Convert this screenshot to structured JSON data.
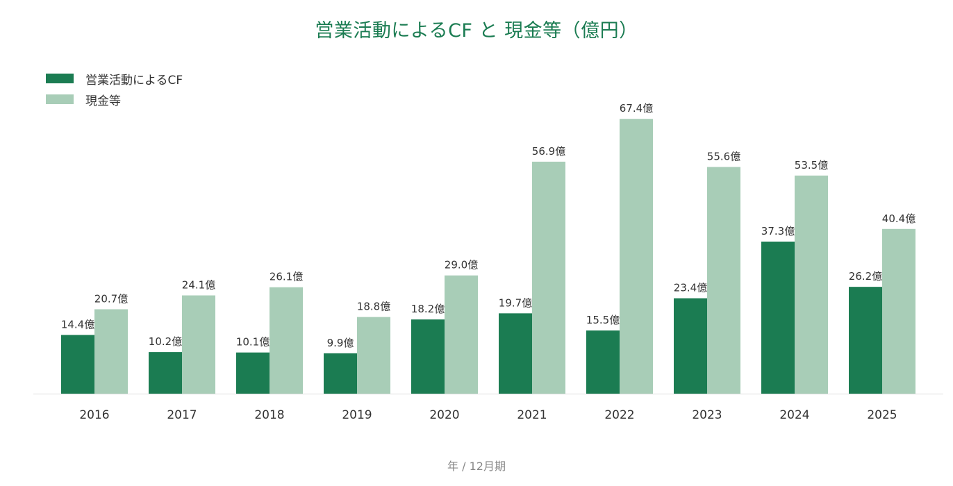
{
  "chart_data": {
    "type": "bar",
    "title": "営業活動によるCF と 現金等（億円）",
    "xlabel": "年 / 12月期",
    "ylabel": "",
    "ylim": [
      0,
      70
    ],
    "grid": false,
    "legend_position": "top-left",
    "categories": [
      "2016",
      "2017",
      "2018",
      "2019",
      "2020",
      "2021",
      "2022",
      "2023",
      "2024",
      "2025"
    ],
    "series": [
      {
        "name": "営業活動によるCF",
        "color": "#1b7c52",
        "values": [
          14.4,
          10.2,
          10.1,
          9.9,
          18.2,
          19.7,
          15.5,
          23.4,
          37.3,
          26.2
        ],
        "labels": [
          "14.4億",
          "10.2億",
          "10.1億",
          "9.9億",
          "18.2億",
          "19.7億",
          "15.5億",
          "23.4億",
          "37.3億",
          "26.2億"
        ]
      },
      {
        "name": "現金等",
        "color": "#a8cdb7",
        "values": [
          20.7,
          24.1,
          26.1,
          18.8,
          29.0,
          56.9,
          67.4,
          55.6,
          53.5,
          40.4
        ],
        "labels": [
          "20.7億",
          "24.1億",
          "26.1億",
          "18.8億",
          "29.0億",
          "56.9億",
          "67.4億",
          "55.6億",
          "53.5億",
          "40.4億"
        ]
      }
    ]
  }
}
